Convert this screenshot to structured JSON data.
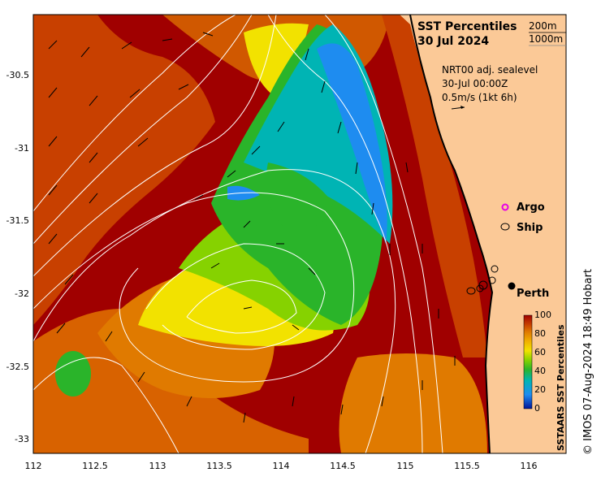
{
  "map": {
    "title_line1": "SST Percentiles",
    "title_line2": "30 Jul 2024",
    "depth_labels": [
      "200m",
      "1000m"
    ],
    "current_info": [
      "NRT00 adj. sealevel",
      "30-Jul 00:00Z",
      "0.5m/s (1kt 6h)"
    ],
    "legend_argo": "Argo",
    "legend_ship": "Ship",
    "place_label": "Perth",
    "credit": "© IMOS 07-Aug-2024 18:49 Hobart",
    "colorbar_title": "SSTAARS SST Percentiles",
    "colorbar_ticks": [
      "100",
      "80",
      "60",
      "40",
      "20",
      "0"
    ],
    "x_ticks": [
      "112",
      "112.5",
      "113",
      "113.5",
      "114",
      "114.5",
      "115",
      "115.5",
      "116"
    ],
    "y_ticks": [
      "-30.5",
      "-31",
      "-31.5",
      "-32",
      "-32.5",
      "-33"
    ],
    "colors": {
      "land": "#fbc997",
      "p100": "#a00000",
      "p90": "#c84000",
      "p80": "#e07a00",
      "p70": "#f0b000",
      "p60": "#f2e200",
      "p50": "#86d200",
      "p40": "#2ab42a",
      "p30": "#00b4b4",
      "p20": "#1e8cf0",
      "p0": "#00149a",
      "argo": "#e600e6"
    }
  }
}
